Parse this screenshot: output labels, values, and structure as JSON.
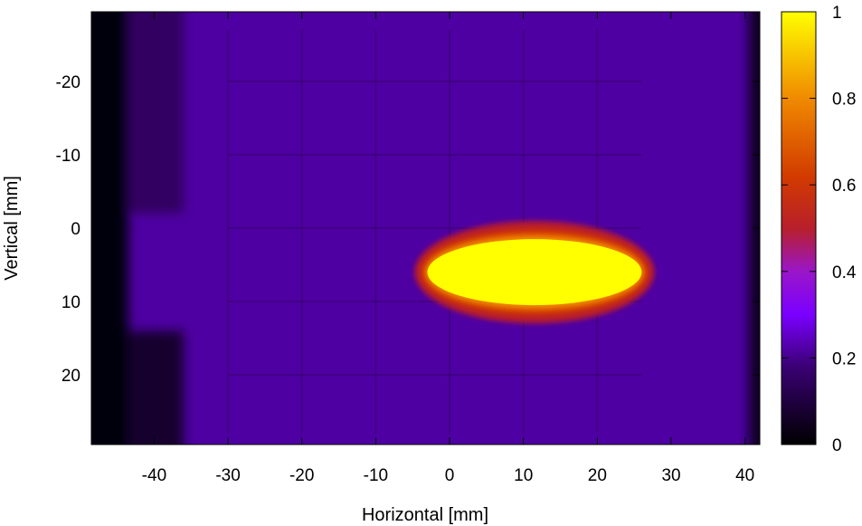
{
  "chart_data": {
    "type": "heatmap",
    "title": "",
    "xlabel": "Horizontal [mm]",
    "ylabel": "Vertical [mm]",
    "xlim": [
      -48.5,
      42
    ],
    "ylim": [
      -29.5,
      29.5
    ],
    "y_axis_inverted": true,
    "x_ticks": [
      -40,
      -30,
      -20,
      -10,
      0,
      10,
      20,
      30,
      40
    ],
    "y_ticks": [
      -20,
      -10,
      0,
      10,
      20
    ],
    "colorbar": {
      "range": [
        0,
        1
      ],
      "ticks": [
        0,
        0.2,
        0.4,
        0.6,
        0.8,
        1
      ],
      "colormap": "gnuplot-pm3d-black-blue-red-yellow"
    },
    "background_level": 0.22,
    "features": [
      {
        "label": "hot spot",
        "center": [
          11.5,
          6
        ],
        "semi_axes": [
          14.5,
          4.5
        ],
        "peak": 1.0
      },
      {
        "label": "left dark edge",
        "x_range": [
          -48.5,
          -43.5
        ],
        "value": 0.02
      },
      {
        "label": "right dark edge",
        "x_range": [
          40.5,
          42
        ],
        "value": 0.05
      },
      {
        "label": "lower left shadow",
        "x_range": [
          -43.5,
          -36
        ],
        "y_range": [
          14,
          29.5
        ],
        "value": 0.07
      },
      {
        "label": "upper left shadow",
        "x_range": [
          -43.5,
          -36
        ],
        "y_range": [
          -29.5,
          -2
        ],
        "value": 0.15
      }
    ],
    "grid_structure_x": [
      -30,
      -20,
      -10,
      0,
      10,
      20
    ],
    "grid_structure_y": [
      -20,
      -10,
      0,
      10,
      20
    ]
  }
}
